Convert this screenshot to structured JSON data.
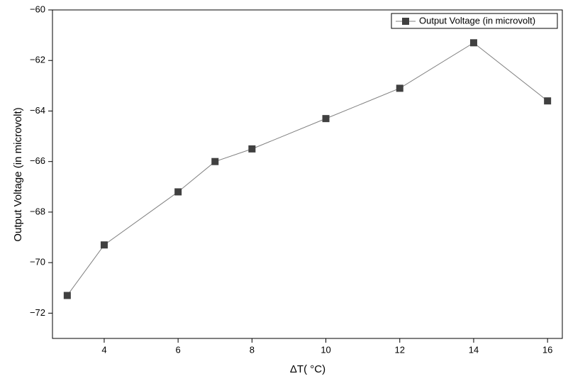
{
  "chart_data": {
    "type": "line",
    "x_label": "ΔT( °C)",
    "y_label": "Output Voltage (in microvolt)",
    "x": [
      3,
      4,
      6,
      7,
      8,
      10,
      12,
      14,
      16
    ],
    "series": [
      {
        "name": "Output Voltage (in microvolt)",
        "color": "#404040",
        "values": [
          -71.3,
          -69.3,
          -67.2,
          -66.0,
          -65.5,
          -64.3,
          -63.1,
          -61.3,
          -63.6
        ]
      }
    ],
    "xlim": [
      2.6,
      16.4
    ],
    "xticks": [
      4,
      6,
      8,
      10,
      12,
      14,
      16
    ],
    "ylim": [
      -73,
      -60
    ],
    "yticks": [
      {
        "value": -60,
        "label": "−60"
      },
      {
        "value": -62,
        "label": "−62"
      },
      {
        "value": -64,
        "label": "−64"
      },
      {
        "value": -66,
        "label": "−66"
      },
      {
        "value": -68,
        "label": "−68"
      },
      {
        "value": -70,
        "label": "−70"
      },
      {
        "value": -72,
        "label": "−72"
      }
    ],
    "legend": "top-right",
    "grid": false
  }
}
